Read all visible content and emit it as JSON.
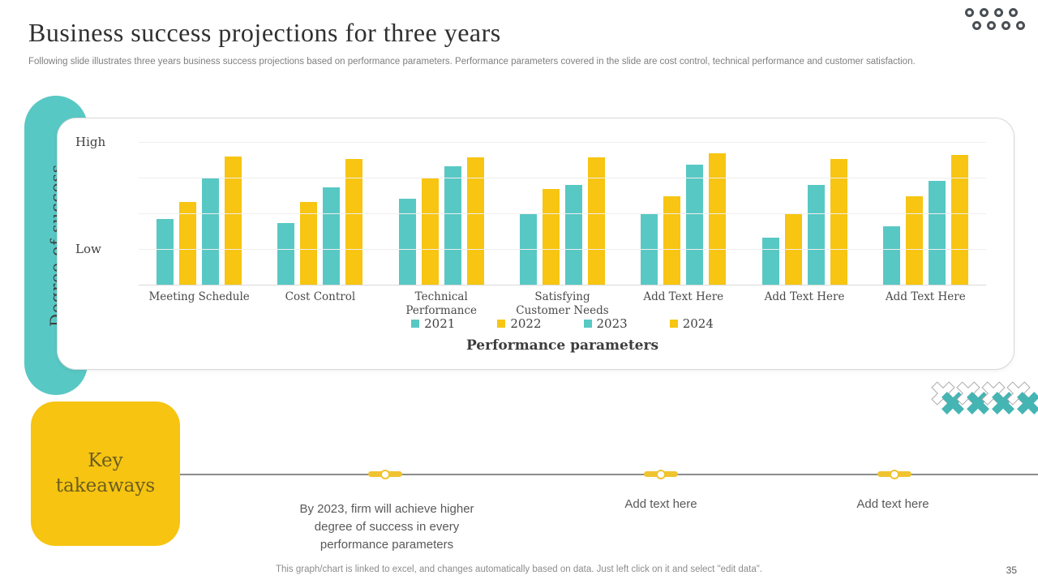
{
  "header": {
    "title": "Business success projections for three years",
    "subtitle": "Following slide illustrates three years business success projections based on performance parameters. Performance parameters covered in the slide are cost control, technical performance and customer satisfaction."
  },
  "chart": {
    "y_axis_label": "Degree of success",
    "y_tick_high": "High",
    "y_tick_low": "Low",
    "x_axis_title": "Performance parameters"
  },
  "chart_data": {
    "type": "bar",
    "title": "Business success projections",
    "xlabel": "Performance parameters",
    "ylabel": "Degree of success",
    "ylim": [
      0,
      10
    ],
    "y_tick_labels": [
      "Low",
      "High"
    ],
    "grid": true,
    "legend_position": "bottom",
    "categories": [
      "Meeting Schedule",
      "Cost Control",
      "Technical Performance",
      "Satisfying Customer Needs",
      "Add Text Here",
      "Add Text Here",
      "Add Text Here"
    ],
    "series": [
      {
        "name": "2021",
        "color": "#58C8C4",
        "values": [
          4.6,
          4.3,
          6.0,
          5.0,
          5.0,
          3.3,
          4.1
        ]
      },
      {
        "name": "2022",
        "color": "#F7C512",
        "values": [
          5.8,
          5.8,
          7.5,
          6.7,
          6.2,
          5.0,
          6.2
        ]
      },
      {
        "name": "2023",
        "color": "#58C8C4",
        "values": [
          7.5,
          6.8,
          8.3,
          7.0,
          8.4,
          7.0,
          7.3
        ]
      },
      {
        "name": "2024",
        "color": "#F7C512",
        "values": [
          9.0,
          8.8,
          8.9,
          8.9,
          9.2,
          8.8,
          9.1
        ]
      }
    ]
  },
  "takeaways": {
    "box_label": "Key takeaways",
    "items": [
      "By 2023, firm will achieve higher degree of success in every performance parameters",
      "Add text here",
      "Add text here"
    ]
  },
  "footer": {
    "note": "This graph/chart is linked to excel,  and changes automatically based on data. Just left click on it and select \"edit data\".",
    "page_number": "35"
  },
  "colors": {
    "teal": "#58C8C4",
    "yellow": "#F7C512",
    "cross_teal": "#45B5B3",
    "marker_yellow": "#F0C330",
    "box_yellow": "#F6C411",
    "box_text": "#6C5D1F"
  }
}
